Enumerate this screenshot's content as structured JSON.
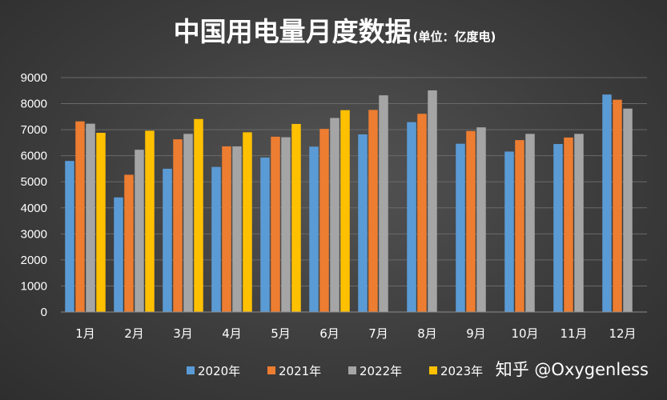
{
  "chart_data": {
    "type": "bar",
    "title": "中国用电量月度数据",
    "subtitle": "(单位：亿度电)",
    "xlabel": "",
    "ylabel": "",
    "ylim": [
      0,
      9000
    ],
    "yticks": [
      "0",
      "1000",
      "2000",
      "3000",
      "4000",
      "5000",
      "6000",
      "7000",
      "8000",
      "9000"
    ],
    "categories": [
      "1月",
      "2月",
      "3月",
      "4月",
      "5月",
      "6月",
      "7月",
      "8月",
      "9月",
      "10月",
      "11月",
      "12月"
    ],
    "grid": true,
    "legend_position": "bottom",
    "series": [
      {
        "name": "2020年",
        "color": "#5b9bd5",
        "values": [
          5800,
          4400,
          5500,
          5570,
          5930,
          6350,
          6820,
          7290,
          6460,
          6160,
          6450,
          8350
        ]
      },
      {
        "name": "2021年",
        "color": "#ed7d31",
        "values": [
          7320,
          5270,
          6630,
          6360,
          6730,
          7030,
          7760,
          7610,
          6950,
          6600,
          6700,
          8150
        ]
      },
      {
        "name": "2022年",
        "color": "#a5a5a5",
        "values": [
          7230,
          6230,
          6840,
          6360,
          6710,
          7450,
          8320,
          8510,
          7090,
          6840,
          6840,
          7810
        ]
      },
      {
        "name": "2023年",
        "color": "#ffc000",
        "values": [
          6880,
          6960,
          7410,
          6900,
          7220,
          7750,
          null,
          null,
          null,
          null,
          null,
          null
        ]
      }
    ]
  },
  "watermark": "知乎 @Oxygenless",
  "colors": {
    "background": "#3d3d3d",
    "gridline": "#6a6a6a",
    "axis_line": "#8c8c8c",
    "text": "#ffffff"
  }
}
